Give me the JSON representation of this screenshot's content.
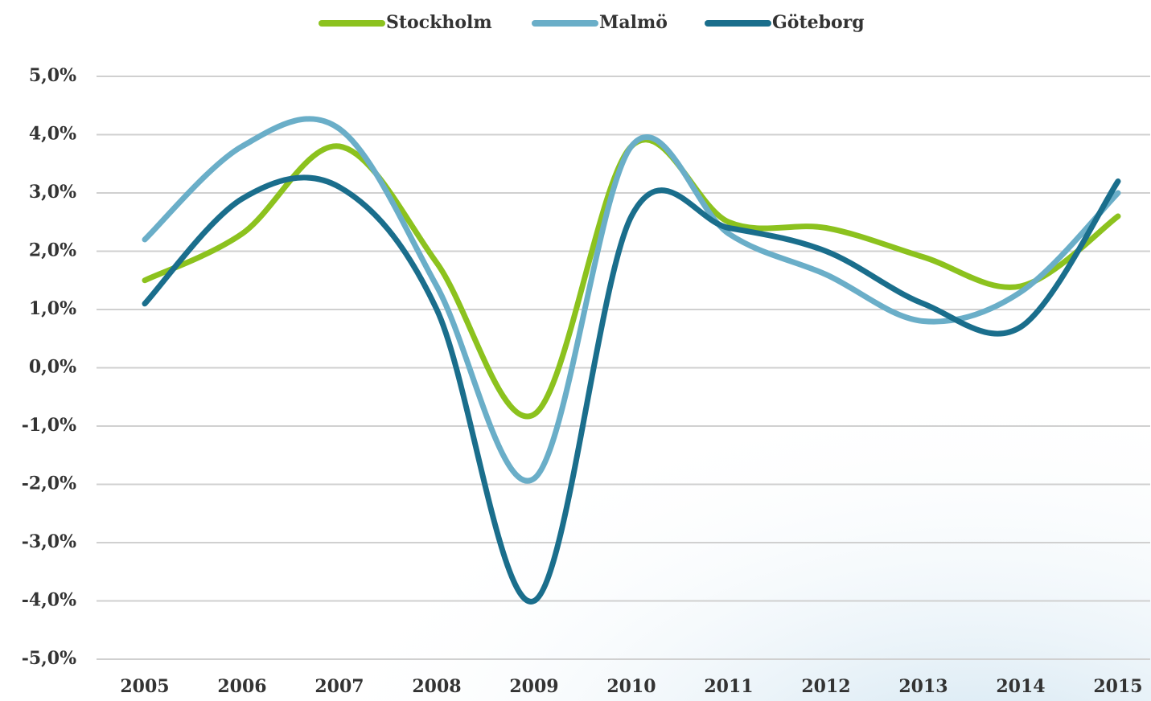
{
  "chart_data": {
    "type": "line",
    "categories": [
      "2005",
      "2006",
      "2007",
      "2008",
      "2009",
      "2010",
      "2011",
      "2012",
      "2013",
      "2014",
      "2015"
    ],
    "series": [
      {
        "name": "Stockholm",
        "color": "#8cc21e",
        "values": [
          1.5,
          2.3,
          3.8,
          1.8,
          -0.8,
          3.8,
          2.5,
          2.4,
          1.9,
          1.4,
          2.6
        ]
      },
      {
        "name": "Malmö",
        "color": "#6aaec8",
        "values": [
          2.2,
          3.8,
          4.1,
          1.4,
          -1.9,
          3.8,
          2.3,
          1.6,
          0.8,
          1.3,
          3.0
        ]
      },
      {
        "name": "Göteborg",
        "color": "#1a6e8c",
        "values": [
          1.1,
          2.9,
          3.1,
          1.0,
          -4.0,
          2.6,
          2.4,
          2.0,
          1.1,
          0.7,
          3.2
        ]
      }
    ],
    "ylim": [
      -5,
      5
    ],
    "yticks": [
      {
        "value": -5,
        "label": "-5,0%"
      },
      {
        "value": -4,
        "label": "-4,0%"
      },
      {
        "value": -3,
        "label": "-3,0%"
      },
      {
        "value": -2,
        "label": "-2,0%"
      },
      {
        "value": -1,
        "label": "-1,0%"
      },
      {
        "value": 0,
        "label": "0,0%"
      },
      {
        "value": 1,
        "label": "1,0%"
      },
      {
        "value": 2,
        "label": "2,0%"
      },
      {
        "value": 3,
        "label": "3,0%"
      },
      {
        "value": 4,
        "label": "4,0%"
      },
      {
        "value": 5,
        "label": "5,0%"
      }
    ],
    "grid": true,
    "legend": "top"
  }
}
